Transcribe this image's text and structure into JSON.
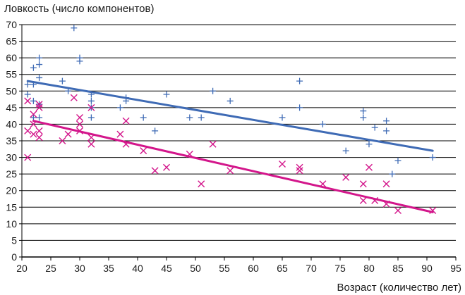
{
  "chart_data": {
    "type": "scatter",
    "ylabel": "Ловкость (число компонентов)",
    "xlabel": "Возраст (количество лет)",
    "xlim": [
      20,
      95
    ],
    "ylim": [
      0,
      70
    ],
    "xticks": [
      20,
      25,
      30,
      35,
      40,
      45,
      50,
      55,
      60,
      65,
      70,
      75,
      80,
      85,
      90,
      95
    ],
    "yticks": [
      0,
      5,
      10,
      15,
      20,
      25,
      30,
      35,
      40,
      45,
      50,
      55,
      60,
      65,
      70
    ],
    "grid": "horizontal",
    "colors": {
      "series_1": "#3f6bb5",
      "series_2": "#d3168b",
      "grid": "#000000",
      "axis": "#000000"
    },
    "series": [
      {
        "marker": "plus",
        "color": "#3f6bb5",
        "points": [
          [
            21,
            49
          ],
          [
            21,
            52
          ],
          [
            22,
            52
          ],
          [
            22,
            57
          ],
          [
            22,
            47
          ],
          [
            22,
            42
          ],
          [
            23,
            58
          ],
          [
            23,
            60
          ],
          [
            23,
            54
          ],
          [
            23,
            46
          ],
          [
            23,
            42
          ],
          [
            27,
            53
          ],
          [
            28,
            50
          ],
          [
            29,
            69
          ],
          [
            30,
            59
          ],
          [
            30,
            60
          ],
          [
            32,
            49
          ],
          [
            32,
            47
          ],
          [
            32,
            45
          ],
          [
            32,
            42
          ],
          [
            37,
            45
          ],
          [
            38,
            48
          ],
          [
            38,
            47
          ],
          [
            41,
            42
          ],
          [
            43,
            38
          ],
          [
            45,
            49
          ],
          [
            49,
            42
          ],
          [
            51,
            42
          ],
          [
            53,
            50
          ],
          [
            56,
            47
          ],
          [
            65,
            42
          ],
          [
            68,
            53
          ],
          [
            68,
            45
          ],
          [
            72,
            40
          ],
          [
            76,
            32
          ],
          [
            79,
            44
          ],
          [
            79,
            42
          ],
          [
            80,
            34
          ],
          [
            81,
            39
          ],
          [
            83,
            41
          ],
          [
            83,
            38
          ],
          [
            84,
            25
          ],
          [
            85,
            29
          ],
          [
            91,
            30
          ]
        ],
        "trendline": [
          [
            21,
            53
          ],
          [
            91,
            32
          ]
        ]
      },
      {
        "marker": "x",
        "color": "#d3168b",
        "points": [
          [
            21,
            47
          ],
          [
            21,
            38
          ],
          [
            21,
            30
          ],
          [
            22,
            43
          ],
          [
            22,
            40
          ],
          [
            22,
            37
          ],
          [
            23,
            46
          ],
          [
            23,
            45
          ],
          [
            23,
            38
          ],
          [
            23,
            36
          ],
          [
            27,
            35
          ],
          [
            28,
            37
          ],
          [
            29,
            48
          ],
          [
            30,
            42
          ],
          [
            30,
            40
          ],
          [
            30,
            38
          ],
          [
            32,
            45
          ],
          [
            32,
            36
          ],
          [
            32,
            34
          ],
          [
            37,
            37
          ],
          [
            38,
            41
          ],
          [
            38,
            34
          ],
          [
            41,
            32
          ],
          [
            43,
            26
          ],
          [
            45,
            27
          ],
          [
            49,
            31
          ],
          [
            51,
            22
          ],
          [
            53,
            34
          ],
          [
            56,
            26
          ],
          [
            65,
            28
          ],
          [
            68,
            27
          ],
          [
            68,
            26
          ],
          [
            72,
            22
          ],
          [
            76,
            24
          ],
          [
            79,
            22
          ],
          [
            79,
            17
          ],
          [
            80,
            27
          ],
          [
            81,
            17
          ],
          [
            83,
            22
          ],
          [
            83,
            16
          ],
          [
            85,
            14
          ],
          [
            91,
            14
          ]
        ],
        "trendline": [
          [
            22,
            41
          ],
          [
            91,
            13.5
          ]
        ]
      }
    ]
  }
}
